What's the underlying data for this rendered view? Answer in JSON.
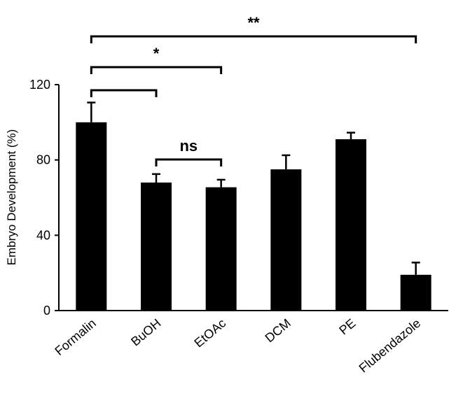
{
  "chart_data": {
    "type": "bar",
    "title": "",
    "xlabel": "",
    "ylabel": "Embryo Development (%)",
    "ylim": [
      0,
      120
    ],
    "yticks": [
      0,
      40,
      80,
      120
    ],
    "grid": false,
    "categories": [
      "Formalin",
      "BuOH",
      "EtOAc",
      "DCM",
      "PE",
      "Flubendazole"
    ],
    "values": [
      100,
      68,
      65.5,
      75,
      91,
      19
    ],
    "errors": [
      10.5,
      4.5,
      4,
      7.5,
      3.5,
      6.5
    ],
    "bar_color": "#000000",
    "significance": [
      {
        "from": "Formalin",
        "to": "BuOH",
        "label": ""
      },
      {
        "from": "BuOH",
        "to": "EtOAc",
        "label": "ns"
      },
      {
        "from": "Formalin",
        "to": "EtOAc",
        "label": "*"
      },
      {
        "from": "Formalin",
        "to": "Flubendazole",
        "label": "**"
      }
    ]
  }
}
